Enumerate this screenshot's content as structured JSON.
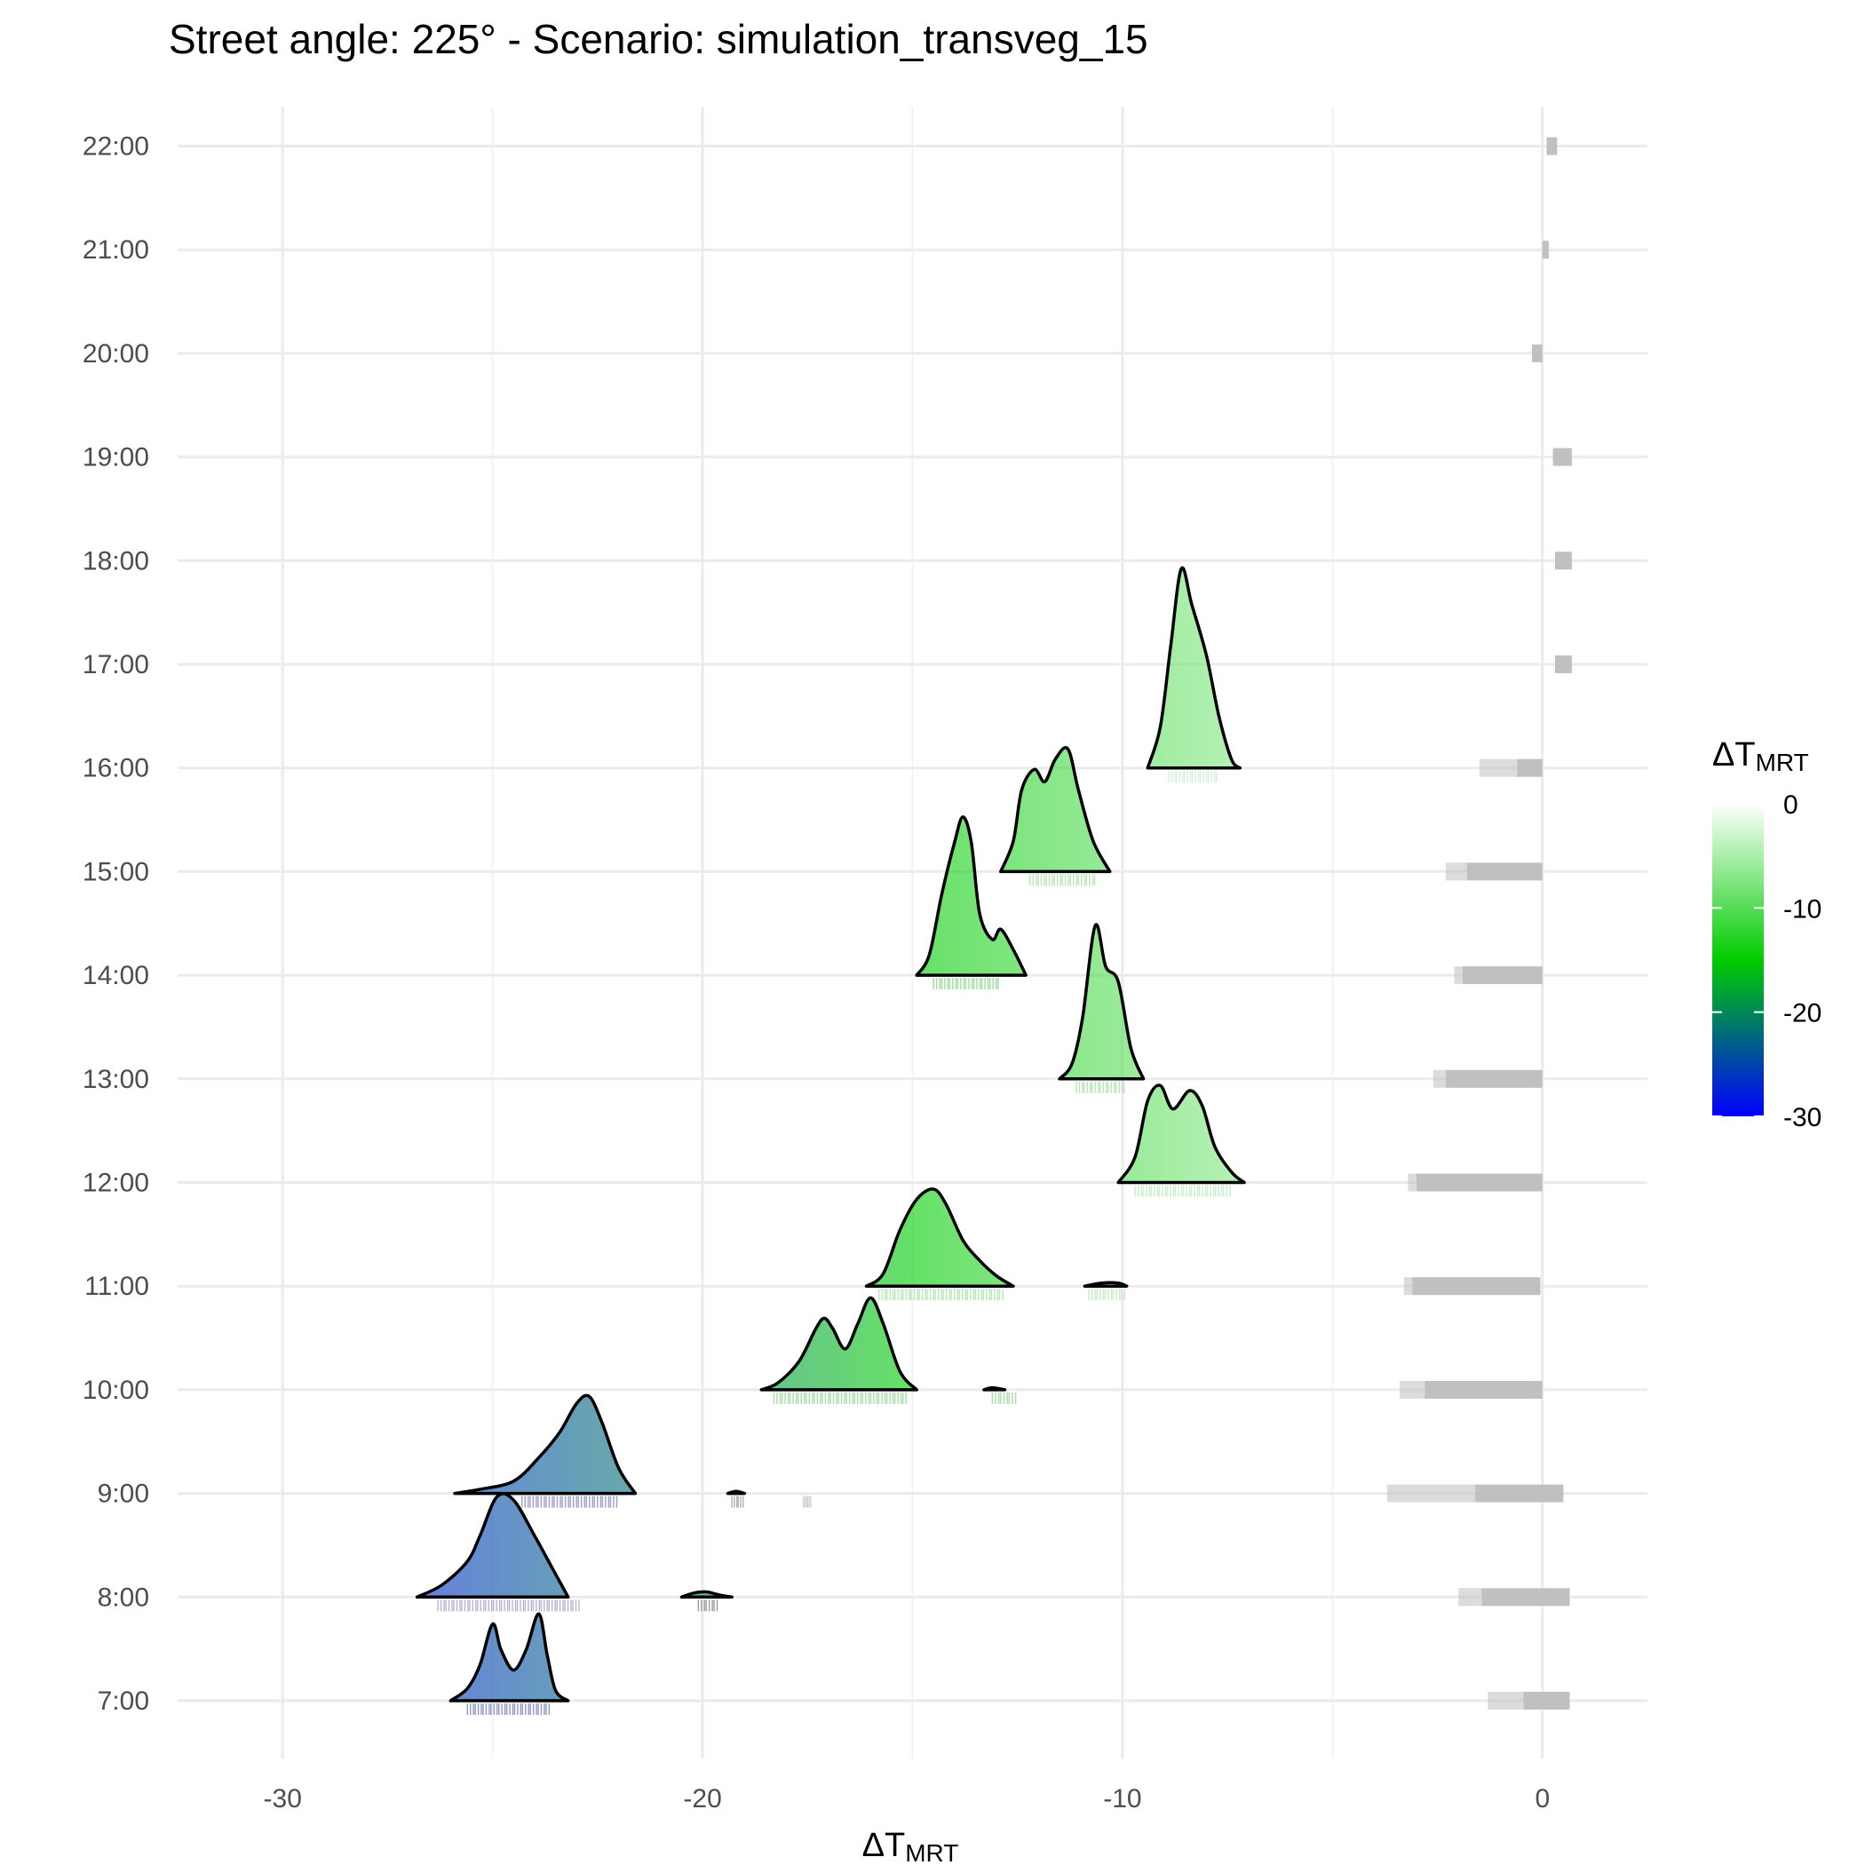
{
  "chart_data": {
    "type": "ridgeline",
    "title": "Street angle: 225° - Scenario: simulation_transveg_15",
    "xlabel": {
      "main": "ΔT",
      "sub": "MRT"
    },
    "ylabel": "",
    "xlim": [
      -32.5,
      2.5
    ],
    "x_ticks": [
      -30,
      -20,
      -10,
      0
    ],
    "x_tick_labels": [
      "-30",
      "-20",
      "-10",
      "0"
    ],
    "categories": [
      "7:00",
      "8:00",
      "9:00",
      "10:00",
      "11:00",
      "12:00",
      "13:00",
      "14:00",
      "15:00",
      "16:00",
      "17:00",
      "18:00",
      "19:00",
      "20:00",
      "21:00",
      "22:00"
    ],
    "grid": true,
    "legend": {
      "title_main": "ΔT",
      "title_sub": "MRT",
      "position": "right",
      "range": [
        -30,
        0
      ],
      "ticks": [
        0,
        -10,
        -20,
        -30
      ],
      "tick_labels": [
        "0",
        "-10",
        "-20",
        "-30"
      ],
      "color_stops": [
        {
          "value": 0,
          "color": "#ffffff"
        },
        {
          "value": -15,
          "color": "#00cc00"
        },
        {
          "value": -30,
          "color": "#0000ff"
        }
      ]
    },
    "neutral_color": "#c0c0c0",
    "series": [
      {
        "time": "7:00",
        "ridges": [
          {
            "mean": -24.4,
            "points": [
              [
                -26.0,
                0
              ],
              [
                -25.6,
                0.12
              ],
              [
                -25.3,
                0.35
              ],
              [
                -25.0,
                0.75
              ],
              [
                -24.8,
                0.5
              ],
              [
                -24.5,
                0.3
              ],
              [
                -24.2,
                0.5
              ],
              [
                -23.9,
                0.85
              ],
              [
                -23.7,
                0.45
              ],
              [
                -23.5,
                0.1
              ],
              [
                -23.2,
                0
              ]
            ]
          }
        ],
        "rug": [
          [
            -25.6,
            -23.6,
            "#9595c8"
          ]
        ],
        "grey": [
          [
            -0.45,
            0.65,
            "dense"
          ],
          [
            -1.3,
            -0.45,
            "sparse"
          ]
        ]
      },
      {
        "time": "8:00",
        "ridges": [
          {
            "mean": -24.5,
            "points": [
              [
                -26.8,
                0
              ],
              [
                -26.2,
                0.12
              ],
              [
                -25.6,
                0.35
              ],
              [
                -25.3,
                0.6
              ],
              [
                -24.9,
                0.98
              ],
              [
                -24.5,
                0.95
              ],
              [
                -24.0,
                0.6
              ],
              [
                -23.6,
                0.3
              ],
              [
                -23.2,
                0
              ]
            ]
          },
          {
            "mean": -20.0,
            "points": [
              [
                -20.5,
                0
              ],
              [
                -20.2,
                0.04
              ],
              [
                -19.9,
                0.05
              ],
              [
                -19.6,
                0.02
              ],
              [
                -19.3,
                0
              ]
            ]
          }
        ],
        "rug": [
          [
            -26.3,
            -22.9,
            "#b4b4d6"
          ],
          [
            -20.1,
            -19.6,
            "#9a9a9a"
          ]
        ],
        "grey": [
          [
            -1.45,
            0.65,
            "dense"
          ],
          [
            -2.0,
            -1.45,
            "sparse"
          ]
        ]
      },
      {
        "time": "9:00",
        "ridges": [
          {
            "mean": -23.0,
            "points": [
              [
                -25.9,
                0
              ],
              [
                -25.3,
                0.04
              ],
              [
                -24.5,
                0.12
              ],
              [
                -23.9,
                0.35
              ],
              [
                -23.4,
                0.6
              ],
              [
                -23.0,
                0.88
              ],
              [
                -22.7,
                0.95
              ],
              [
                -22.4,
                0.7
              ],
              [
                -22.0,
                0.25
              ],
              [
                -21.6,
                0
              ]
            ]
          },
          {
            "mean": -19.2,
            "points": [
              [
                -19.4,
                0
              ],
              [
                -19.2,
                0.02
              ],
              [
                -19.0,
                0
              ]
            ]
          }
        ],
        "rug": [
          [
            -24.3,
            -22.0,
            "#9c9cc8"
          ],
          [
            -19.3,
            -19.0,
            "#b0b0b0"
          ],
          [
            -17.6,
            -17.4,
            "#d0d0d0"
          ]
        ],
        "grey": [
          [
            -1.6,
            0.5,
            "dense"
          ],
          [
            -3.7,
            -1.6,
            "sparse"
          ]
        ]
      },
      {
        "time": "10:00",
        "ridges": [
          {
            "mean": -16.4,
            "points": [
              [
                -18.6,
                0
              ],
              [
                -18.2,
                0.07
              ],
              [
                -17.7,
                0.28
              ],
              [
                -17.3,
                0.6
              ],
              [
                -17.1,
                0.7
              ],
              [
                -16.9,
                0.6
              ],
              [
                -16.6,
                0.4
              ],
              [
                -16.3,
                0.65
              ],
              [
                -16.0,
                0.9
              ],
              [
                -15.7,
                0.65
              ],
              [
                -15.3,
                0.18
              ],
              [
                -14.9,
                0
              ]
            ]
          },
          {
            "mean": -13.1,
            "points": [
              [
                -13.3,
                0
              ],
              [
                -13.1,
                0.02
              ],
              [
                -12.8,
                0
              ]
            ]
          }
        ],
        "rug": [
          [
            -18.3,
            -15.1,
            "#a8dca8"
          ],
          [
            -13.1,
            -12.5,
            "#a8dca8"
          ]
        ],
        "grey": [
          [
            -2.8,
            0,
            "dense"
          ],
          [
            -3.4,
            -2.8,
            "sparse"
          ]
        ]
      },
      {
        "time": "11:00",
        "ridges": [
          {
            "mean": -14.2,
            "points": [
              [
                -16.1,
                0
              ],
              [
                -15.7,
                0.12
              ],
              [
                -15.3,
                0.55
              ],
              [
                -14.9,
                0.85
              ],
              [
                -14.5,
                0.95
              ],
              [
                -14.2,
                0.8
              ],
              [
                -13.8,
                0.45
              ],
              [
                -13.4,
                0.25
              ],
              [
                -13.0,
                0.1
              ],
              [
                -12.6,
                0
              ]
            ]
          },
          {
            "mean": -10.4,
            "points": [
              [
                -10.9,
                0
              ],
              [
                -10.5,
                0.03
              ],
              [
                -10.1,
                0.03
              ],
              [
                -9.9,
                0
              ]
            ]
          }
        ],
        "rug": [
          [
            -15.8,
            -12.8,
            "#b7e6b7"
          ],
          [
            -10.8,
            -9.9,
            "#c8eac8"
          ]
        ],
        "grey": [
          [
            -3.1,
            -0.05,
            "dense"
          ],
          [
            -3.3,
            -3.1,
            "sparse"
          ]
        ]
      },
      {
        "time": "12:00",
        "ridges": [
          {
            "mean": -8.8,
            "points": [
              [
                -10.1,
                0
              ],
              [
                -9.7,
                0.25
              ],
              [
                -9.4,
                0.8
              ],
              [
                -9.1,
                0.95
              ],
              [
                -8.8,
                0.72
              ],
              [
                -8.4,
                0.9
              ],
              [
                -8.1,
                0.75
              ],
              [
                -7.8,
                0.35
              ],
              [
                -7.4,
                0.1
              ],
              [
                -7.1,
                0
              ]
            ]
          }
        ],
        "rug": [
          [
            -9.7,
            -7.4,
            "#ccf0cc"
          ]
        ],
        "grey": [
          [
            -3.0,
            0,
            "dense"
          ],
          [
            -3.2,
            -3.0,
            "sparse"
          ]
        ]
      },
      {
        "time": "13:00",
        "ridges": [
          {
            "mean": -10.5,
            "points": [
              [
                -11.5,
                0
              ],
              [
                -11.2,
                0.15
              ],
              [
                -10.95,
                0.6
              ],
              [
                -10.65,
                1.5
              ],
              [
                -10.4,
                1.1
              ],
              [
                -10.1,
                0.95
              ],
              [
                -9.8,
                0.3
              ],
              [
                -9.5,
                0
              ]
            ]
          }
        ],
        "rug": [
          [
            -11.1,
            -9.9,
            "#b8e6b8"
          ]
        ],
        "grey": [
          [
            -2.3,
            0,
            "dense"
          ],
          [
            -2.6,
            -2.3,
            "sparse"
          ]
        ]
      },
      {
        "time": "14:00",
        "ridges": [
          {
            "mean": -13.8,
            "points": [
              [
                -14.9,
                0
              ],
              [
                -14.6,
                0.2
              ],
              [
                -14.3,
                0.8
              ],
              [
                -14.0,
                1.3
              ],
              [
                -13.8,
                1.55
              ],
              [
                -13.6,
                1.3
              ],
              [
                -13.4,
                0.6
              ],
              [
                -13.1,
                0.35
              ],
              [
                -12.9,
                0.45
              ],
              [
                -12.6,
                0.25
              ],
              [
                -12.3,
                0
              ]
            ]
          }
        ],
        "rug": [
          [
            -14.5,
            -12.9,
            "#9cdc9c"
          ]
        ],
        "grey": [
          [
            -1.9,
            0,
            "dense"
          ],
          [
            -2.1,
            -1.9,
            "sparse"
          ]
        ]
      },
      {
        "time": "15:00",
        "ridges": [
          {
            "mean": -11.6,
            "points": [
              [
                -12.9,
                0
              ],
              [
                -12.6,
                0.3
              ],
              [
                -12.4,
                0.8
              ],
              [
                -12.1,
                1.0
              ],
              [
                -11.85,
                0.88
              ],
              [
                -11.6,
                1.1
              ],
              [
                -11.3,
                1.2
              ],
              [
                -11.05,
                0.8
              ],
              [
                -10.7,
                0.3
              ],
              [
                -10.3,
                0
              ]
            ]
          }
        ],
        "rug": [
          [
            -12.2,
            -10.6,
            "#b8e6b8"
          ]
        ],
        "grey": [
          [
            -1.8,
            0,
            "dense"
          ],
          [
            -2.3,
            -1.8,
            "sparse"
          ]
        ]
      },
      {
        "time": "16:00",
        "ridges": [
          {
            "mean": -8.5,
            "points": [
              [
                -9.4,
                0
              ],
              [
                -9.1,
                0.4
              ],
              [
                -8.85,
                1.2
              ],
              [
                -8.6,
                1.95
              ],
              [
                -8.35,
                1.6
              ],
              [
                -8.0,
                1.1
              ],
              [
                -7.7,
                0.5
              ],
              [
                -7.4,
                0.08
              ],
              [
                -7.2,
                0
              ]
            ]
          }
        ],
        "rug": [
          [
            -8.9,
            -7.7,
            "#d4f0d4"
          ]
        ],
        "grey": [
          [
            -0.6,
            0,
            "dense"
          ],
          [
            -1.5,
            -0.6,
            "sparse"
          ]
        ]
      },
      {
        "time": "17:00",
        "ridges": [],
        "rug": [],
        "grey": [
          [
            0.3,
            0.7,
            "dense"
          ]
        ]
      },
      {
        "time": "18:00",
        "ridges": [],
        "rug": [],
        "grey": [
          [
            0.3,
            0.7,
            "dense"
          ]
        ]
      },
      {
        "time": "19:00",
        "ridges": [],
        "rug": [],
        "grey": [
          [
            0.25,
            0.7,
            "dense"
          ]
        ]
      },
      {
        "time": "20:00",
        "ridges": [],
        "rug": [],
        "grey": [
          [
            -0.25,
            0.0,
            "dense"
          ]
        ]
      },
      {
        "time": "21:00",
        "ridges": [],
        "rug": [],
        "grey": [
          [
            0.0,
            0.15,
            "dense"
          ]
        ]
      },
      {
        "time": "22:00",
        "ridges": [],
        "rug": [],
        "grey": [
          [
            0.1,
            0.35,
            "dense"
          ]
        ]
      }
    ]
  }
}
